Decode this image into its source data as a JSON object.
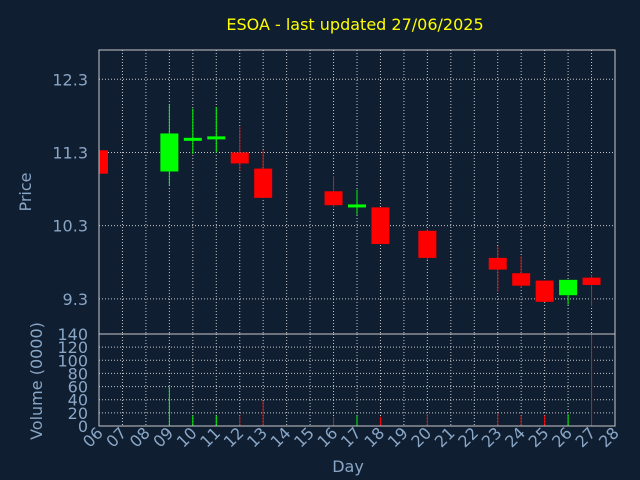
{
  "chart_data": {
    "type": "candlestick",
    "title": "ESOA - last updated 27/06/2025",
    "xlabel": "Day",
    "ylabel": "Price",
    "volume_ylabel": "Volume (0000)",
    "x_ticks": [
      "06",
      "07",
      "08",
      "09",
      "10",
      "11",
      "12",
      "13",
      "14",
      "15",
      "16",
      "17",
      "18",
      "19",
      "20",
      "21",
      "22",
      "23",
      "24",
      "25",
      "26",
      "27",
      "28"
    ],
    "y_ticks": [
      "9.3",
      "10.3",
      "11.3",
      "12.3"
    ],
    "ylim": [
      8.82,
      12.7
    ],
    "volume_ticks": [
      "0",
      "20",
      "40",
      "60",
      "80",
      "100",
      "120",
      "140"
    ],
    "volume_ylim": [
      0,
      140
    ],
    "colors": {
      "up": "#00ff00",
      "down": "#ff0000",
      "background": "#0f1e30",
      "title": "#ffff00",
      "axis_text": "#8aa6c6",
      "grid": "#c8c8c8"
    },
    "candles": [
      {
        "day": "06",
        "open": 11.33,
        "high": 11.33,
        "low": 11.01,
        "close": 11.01,
        "volume": 0
      },
      {
        "day": "09",
        "open": 11.04,
        "high": 11.95,
        "low": 10.85,
        "close": 11.56,
        "volume": 60
      },
      {
        "day": "10",
        "open": 11.5,
        "high": 11.9,
        "low": 11.28,
        "close": 11.5,
        "volume": 16
      },
      {
        "day": "11",
        "open": 11.5,
        "high": 11.92,
        "low": 11.3,
        "close": 11.52,
        "volume": 16
      },
      {
        "day": "12",
        "open": 11.3,
        "high": 11.65,
        "low": 11.05,
        "close": 11.15,
        "volume": 16
      },
      {
        "day": "13",
        "open": 11.08,
        "high": 11.33,
        "low": 10.68,
        "close": 10.68,
        "volume": 38
      },
      {
        "day": "16",
        "open": 10.77,
        "high": 10.98,
        "low": 10.55,
        "close": 10.58,
        "volume": 14
      },
      {
        "day": "17",
        "open": 10.59,
        "high": 10.79,
        "low": 10.45,
        "close": 10.59,
        "volume": 16
      },
      {
        "day": "18",
        "open": 10.55,
        "high": 10.55,
        "low": 10.05,
        "close": 10.05,
        "volume": 14
      },
      {
        "day": "20",
        "open": 10.23,
        "high": 10.25,
        "low": 9.83,
        "close": 9.86,
        "volume": 18
      },
      {
        "day": "23",
        "open": 9.86,
        "high": 10.02,
        "low": 9.4,
        "close": 9.7,
        "volume": 20
      },
      {
        "day": "24",
        "open": 9.65,
        "high": 9.88,
        "low": 9.45,
        "close": 9.48,
        "volume": 16
      },
      {
        "day": "25",
        "open": 9.55,
        "high": 9.55,
        "low": 9.26,
        "close": 9.26,
        "volume": 16
      },
      {
        "day": "26",
        "open": 9.35,
        "high": 9.56,
        "low": 9.22,
        "close": 9.56,
        "volume": 18
      },
      {
        "day": "27",
        "open": 9.59,
        "high": 9.63,
        "low": 9.2,
        "close": 9.49,
        "volume": 140
      }
    ]
  }
}
